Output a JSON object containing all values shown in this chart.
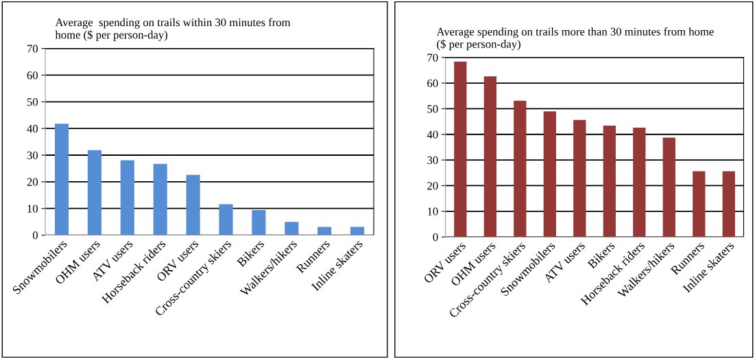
{
  "chart_data": [
    {
      "type": "bar",
      "title": "Average  spending on trails within 30 minutes from\nhome ($ per person-day)",
      "categories": [
        "Snowmobilers",
        "OHM users",
        "ATV users",
        "Horseback riders",
        "ORV users",
        "Cross-country skiers",
        "Bikers",
        "Walkers/hikers",
        "Runners",
        "Inline skaters"
      ],
      "values": [
        41.8,
        31.9,
        28.1,
        26.7,
        22.6,
        11.6,
        9.4,
        5.0,
        3.1,
        3.1
      ],
      "color": "#558ed5",
      "ylim": [
        0,
        70
      ],
      "yticks": [
        0,
        10,
        20,
        30,
        40,
        50,
        60,
        70
      ],
      "grid": "y",
      "legend": false
    },
    {
      "type": "bar",
      "title": "Average spending on trails more than 30 minutes from home\n($ per person-day)",
      "categories": [
        "ORV users",
        "OHM users",
        "Cross-country skiers",
        "Snowmobilers",
        "ATV users",
        "Bikers",
        "Horseback riders",
        "Walkers/hikers",
        "Runners",
        "Inline skaters"
      ],
      "values": [
        68.4,
        62.6,
        53.1,
        49.0,
        45.6,
        43.4,
        42.6,
        38.7,
        25.6,
        25.6
      ],
      "color": "#953735",
      "ylim": [
        0,
        70
      ],
      "yticks": [
        0,
        10,
        20,
        30,
        40,
        50,
        60,
        70
      ],
      "grid": "y",
      "legend": false
    }
  ]
}
